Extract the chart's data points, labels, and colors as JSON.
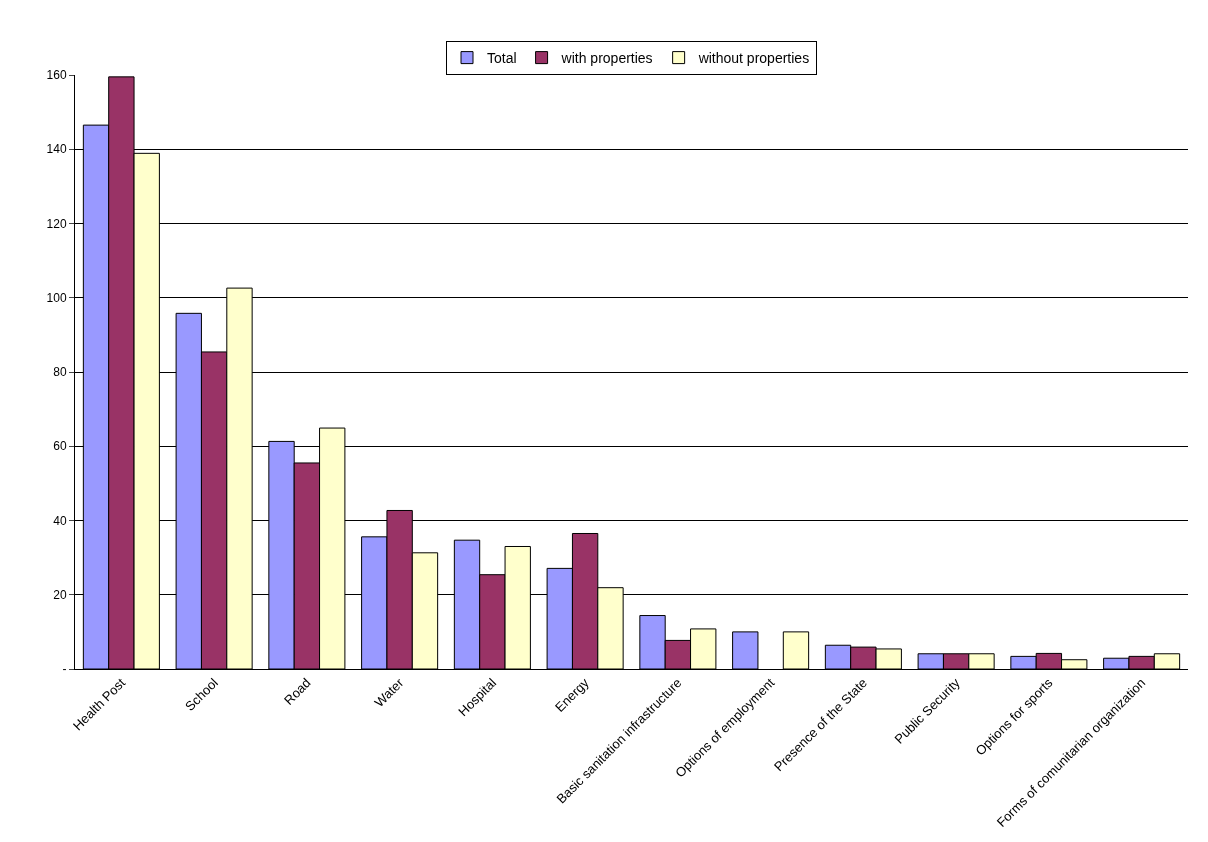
{
  "chart_data": {
    "type": "bar",
    "categories": [
      "Health Post",
      "School",
      "Road",
      "Water",
      "Hospital",
      "Energy",
      "Basic sanitation infrastructure",
      "Options of employment",
      "Presence of the State",
      "Public Security",
      "Options for sports",
      "Forms of comunitarian organization"
    ],
    "series": [
      {
        "name": "Total",
        "color": "#9999ff",
        "values": [
          146.5,
          95.8,
          61.3,
          35.6,
          34.7,
          27.1,
          14.4,
          10.0,
          6.4,
          4.1,
          3.4,
          2.9
        ]
      },
      {
        "name": "with properties",
        "color": "#993366",
        "values": [
          159.5,
          85.4,
          55.5,
          42.7,
          25.4,
          36.5,
          7.7,
          null,
          5.9,
          4.1,
          4.2,
          3.4
        ]
      },
      {
        "name": "without properties",
        "color": "#ffffcc",
        "values": [
          138.9,
          102.6,
          64.9,
          31.3,
          33.0,
          21.9,
          10.8,
          10.0,
          5.4,
          4.1,
          2.5,
          4.1
        ]
      }
    ],
    "ylim": [
      0,
      160
    ],
    "yticks": [
      {
        "value": 0,
        "label": "-"
      },
      20,
      40,
      60,
      80,
      100,
      120,
      140,
      160
    ],
    "grid": "y",
    "legend": "top"
  }
}
